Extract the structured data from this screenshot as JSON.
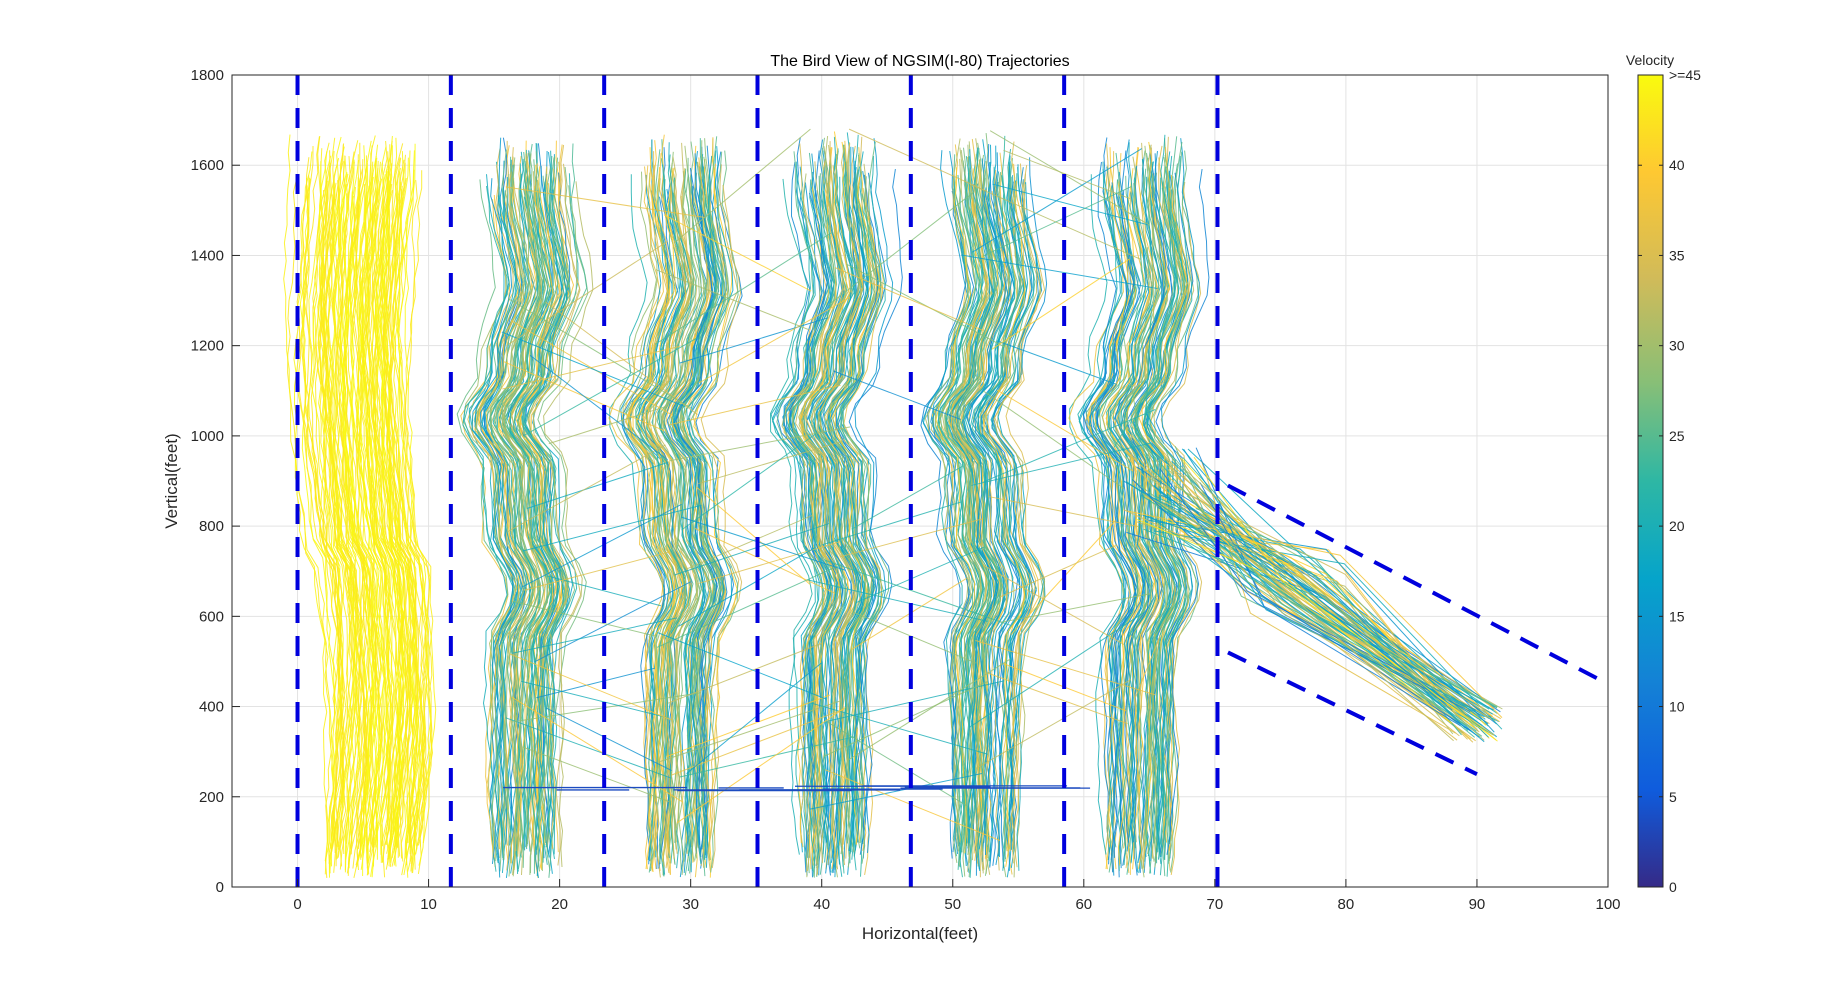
{
  "chart_data": {
    "type": "line",
    "title": "The Bird View of NGSIM(I-80) Trajectories",
    "xlabel": "Horizontal(feet)",
    "ylabel": "Vertical(feet)",
    "xlim": [
      -5,
      100
    ],
    "ylim": [
      0,
      1800
    ],
    "xticks": [
      "0",
      "10",
      "20",
      "30",
      "40",
      "50",
      "60",
      "70",
      "80",
      "90",
      "100"
    ],
    "yticks": [
      "0",
      "200",
      "400",
      "600",
      "800",
      "1000",
      "1200",
      "1400",
      "1600",
      "1800"
    ],
    "grid": true,
    "lane_boundaries_x": [
      0,
      11.7,
      23.4,
      35.1,
      46.8,
      58.5,
      70.2
    ],
    "lane_boundary_y_range": [
      0,
      1800
    ],
    "lane_centers_x": [
      5,
      17.5,
      29.2,
      40.9,
      52.6,
      64.3
    ],
    "ramp_lines": [
      {
        "x": [
          71,
          100
        ],
        "y": [
          890,
          450
        ]
      },
      {
        "x": [
          71,
          90
        ],
        "y": [
          520,
          250
        ]
      }
    ],
    "line_color": "#0000dd",
    "colorbar": {
      "label": "Velocity",
      "range": [
        0,
        45
      ],
      "ticks": [
        "0",
        "5",
        "10",
        "15",
        "20",
        "25",
        "30",
        "35",
        "40",
        ">=45"
      ],
      "colormap": "parula"
    }
  }
}
